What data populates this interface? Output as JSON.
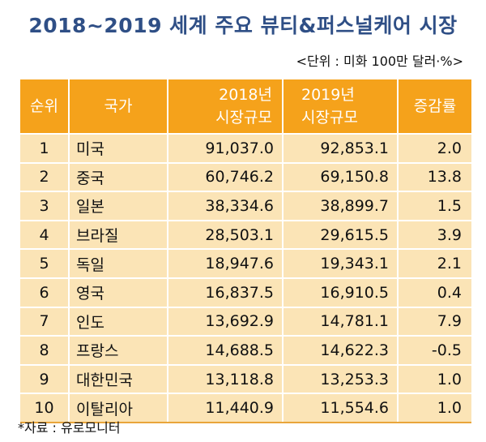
{
  "title": "2018~2019 세계 주요 뷰티&퍼스널케어 시장",
  "unit": "<단위 : 미화 100만 달러·%>",
  "headers": {
    "rank": "순위",
    "country": "국가",
    "y2018_line1": "2018년",
    "y2018_line2": "시장규모",
    "y2019_line1": "2019년",
    "y2019_line2": "시장규모",
    "growth": "증감률"
  },
  "rows": [
    {
      "rank": "1",
      "country": "미국",
      "y2018": "91,037.0",
      "y2019": "92,853.1",
      "growth": "2.0"
    },
    {
      "rank": "2",
      "country": "중국",
      "y2018": "60,746.2",
      "y2019": "69,150.8",
      "growth": "13.8"
    },
    {
      "rank": "3",
      "country": "일본",
      "y2018": "38,334.6",
      "y2019": "38,899.7",
      "growth": "1.5"
    },
    {
      "rank": "4",
      "country": "브라질",
      "y2018": "28,503.1",
      "y2019": "29,615.5",
      "growth": "3.9"
    },
    {
      "rank": "5",
      "country": "독일",
      "y2018": "18,947.6",
      "y2019": "19,343.1",
      "growth": "2.1"
    },
    {
      "rank": "6",
      "country": "영국",
      "y2018": "16,837.5",
      "y2019": "16,910.5",
      "growth": "0.4"
    },
    {
      "rank": "7",
      "country": "인도",
      "y2018": "13,692.9",
      "y2019": "14,781.1",
      "growth": "7.9"
    },
    {
      "rank": "8",
      "country": "프랑스",
      "y2018": "14,688.5",
      "y2019": "14,622.3",
      "growth": "-0.5"
    },
    {
      "rank": "9",
      "country": "대한민국",
      "y2018": "13,118.8",
      "y2019": "13,253.3",
      "growth": "1.0"
    },
    {
      "rank": "10",
      "country": "이탈리아",
      "y2018": "11,440.9",
      "y2019": "11,554.6",
      "growth": "1.0"
    }
  ],
  "source": "*자료 : 유로모니터"
}
